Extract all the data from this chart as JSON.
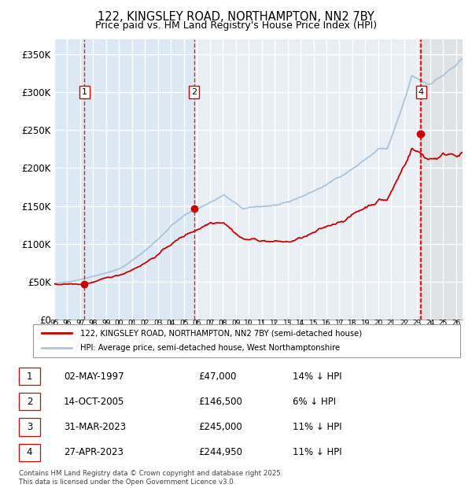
{
  "title": "122, KINGSLEY ROAD, NORTHAMPTON, NN2 7BY",
  "subtitle": "Price paid vs. HM Land Registry's House Price Index (HPI)",
  "legend_line1": "122, KINGSLEY ROAD, NORTHAMPTON, NN2 7BY (semi-detached house)",
  "legend_line2": "HPI: Average price, semi-detached house, West Northamptonshire",
  "footer": "Contains HM Land Registry data © Crown copyright and database right 2025.\nThis data is licensed under the Open Government Licence v3.0.",
  "transactions": [
    {
      "num": 1,
      "date": "02-MAY-1997",
      "price": "£47,000",
      "pct": "14% ↓ HPI",
      "year": 1997.33
    },
    {
      "num": 2,
      "date": "14-OCT-2005",
      "price": "£146,500",
      "pct": "6% ↓ HPI",
      "year": 2005.78
    },
    {
      "num": 3,
      "date": "31-MAR-2023",
      "price": "£245,000",
      "pct": "11% ↓ HPI",
      "year": 2023.25
    },
    {
      "num": 4,
      "date": "27-APR-2023",
      "price": "£244,950",
      "pct": "11% ↓ HPI",
      "year": 2023.31
    }
  ],
  "hpi_color": "#aac4dd",
  "price_color": "#cc0000",
  "bg_shade_color": "#dce9f5",
  "vline_color": "#dd0000",
  "marker_color": "#cc0000",
  "xlim": [
    1995.0,
    2026.5
  ],
  "ylim": [
    0,
    370000
  ],
  "yticks": [
    0,
    50000,
    100000,
    150000,
    200000,
    250000,
    300000,
    350000
  ],
  "ytick_labels": [
    "£0",
    "£50K",
    "£100K",
    "£150K",
    "£200K",
    "£250K",
    "£300K",
    "£350K"
  ],
  "xtick_years": [
    1995,
    1996,
    1997,
    1998,
    1999,
    2000,
    2001,
    2002,
    2003,
    2004,
    2005,
    2006,
    2007,
    2008,
    2009,
    2010,
    2011,
    2012,
    2013,
    2014,
    2015,
    2016,
    2017,
    2018,
    2019,
    2020,
    2021,
    2022,
    2023,
    2024,
    2025,
    2026
  ],
  "chart_bg": "#e8eef4",
  "grid_color": "#ffffff",
  "hatch_bg": "#d8d8d8"
}
